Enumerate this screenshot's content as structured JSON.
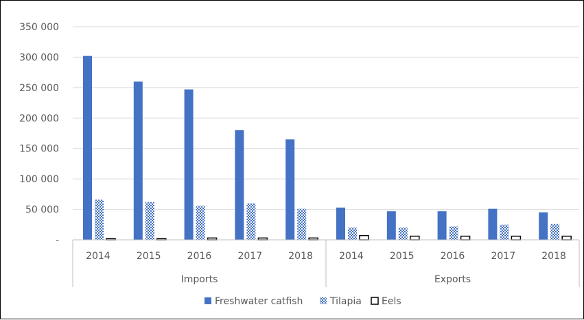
{
  "chart_data": {
    "type": "bar",
    "groups": [
      "Imports",
      "Exports"
    ],
    "categories": [
      "2014",
      "2015",
      "2016",
      "2017",
      "2018"
    ],
    "series": [
      {
        "name": "Freshwater catfish",
        "color": "#4472C4",
        "pattern": "solid",
        "values": [
          [
            302000,
            260000,
            247000,
            180000,
            165000
          ],
          [
            53000,
            47000,
            47000,
            51000,
            45000
          ]
        ]
      },
      {
        "name": "Tilapia",
        "color": "#4472C4",
        "pattern": "checker",
        "values": [
          [
            66000,
            62000,
            56000,
            60000,
            51000
          ],
          [
            20000,
            20000,
            22000,
            25000,
            26000
          ]
        ]
      },
      {
        "name": "Eels",
        "color": "#000000",
        "pattern": "outline",
        "values": [
          [
            2000,
            2000,
            3000,
            3000,
            3000
          ],
          [
            7000,
            6000,
            6000,
            6000,
            6000
          ]
        ]
      }
    ],
    "y_ticks": [
      "-",
      "50 000",
      "100 000",
      "150 000",
      "200 000",
      "250 000",
      "300 000",
      "350 000"
    ],
    "ylim": [
      0,
      350000
    ],
    "grid": true,
    "legend": "bottom"
  }
}
